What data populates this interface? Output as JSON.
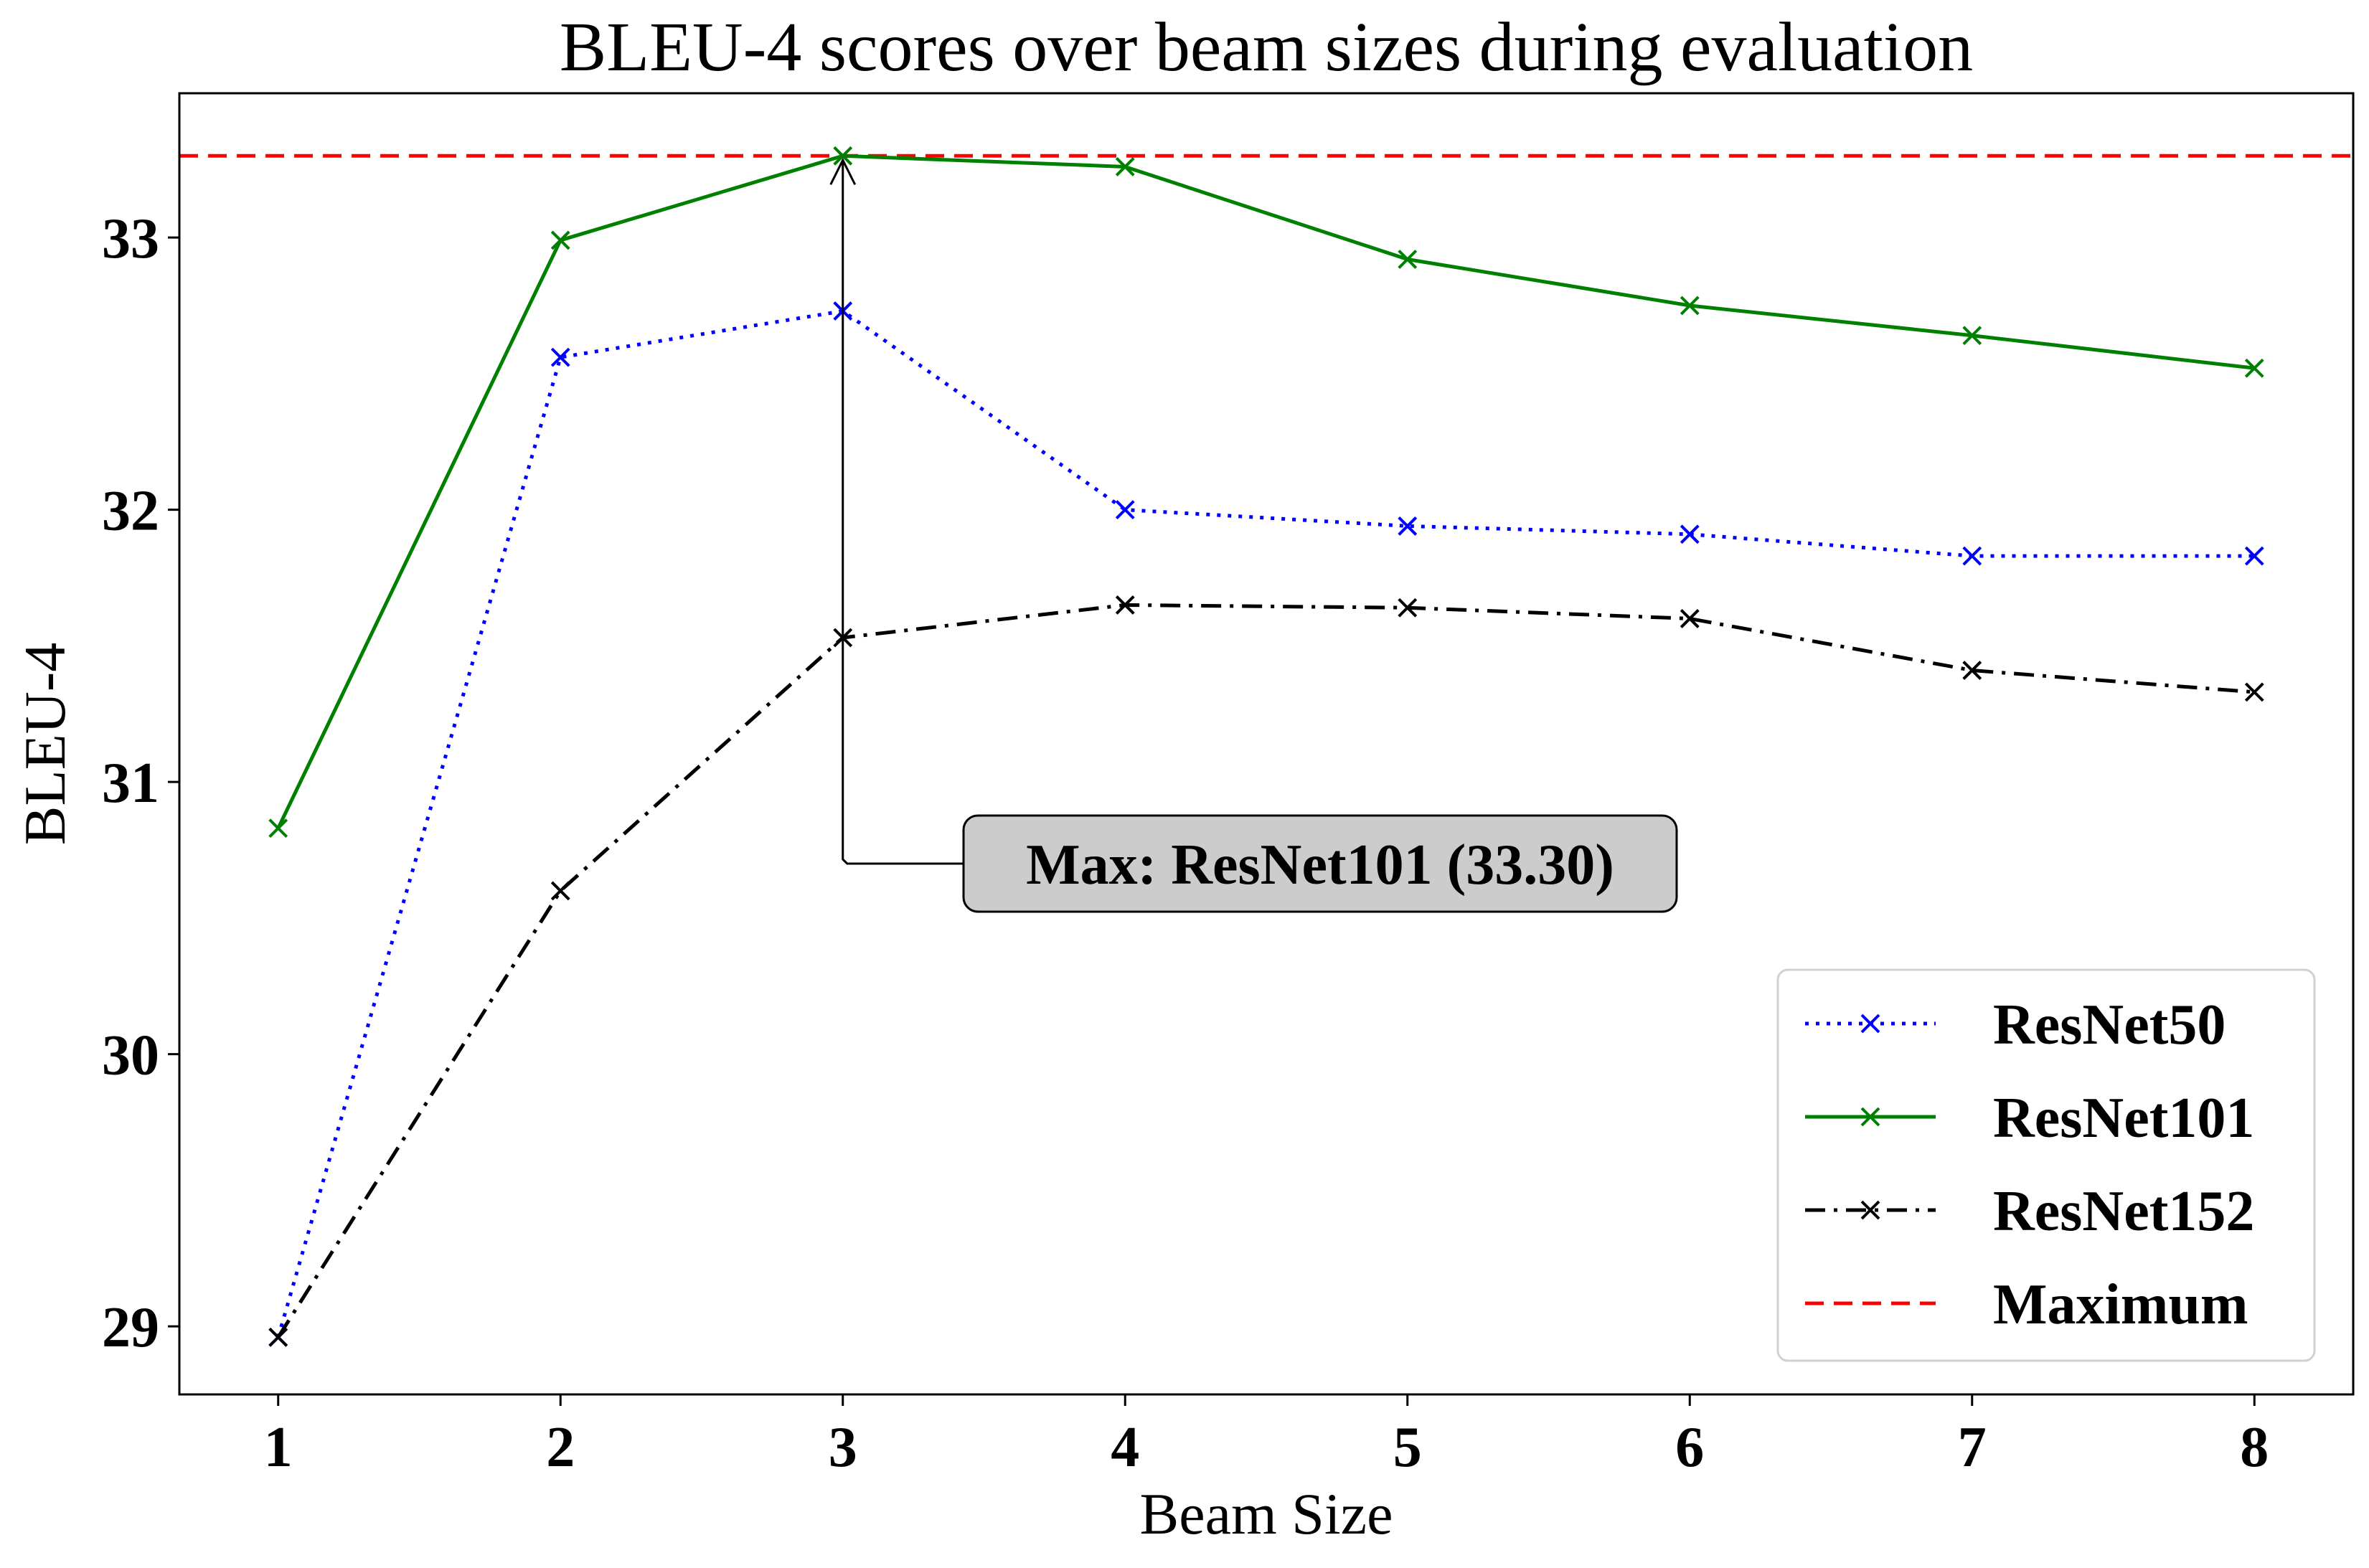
{
  "chart_data": {
    "type": "line",
    "title": "BLEU-4 scores over beam sizes during evaluation",
    "xlabel": "Beam Size",
    "ylabel": "BLEU-4",
    "x": [
      1,
      2,
      3,
      4,
      5,
      6,
      7,
      8
    ],
    "xlim": [
      0.65,
      8.35
    ],
    "ylim": [
      28.75,
      33.53
    ],
    "xticks": [
      1,
      2,
      3,
      4,
      5,
      6,
      7,
      8
    ],
    "yticks": [
      29,
      30,
      31,
      32,
      33
    ],
    "grid": false,
    "legend_position": "lower-right",
    "series": [
      {
        "name": "ResNet50",
        "values": [
          28.96,
          32.56,
          32.73,
          32.0,
          31.94,
          31.91,
          31.83,
          31.83
        ],
        "color": "#0000ff",
        "line_style": "dotted",
        "marker": "x"
      },
      {
        "name": "ResNet101",
        "values": [
          30.83,
          32.99,
          33.3,
          33.26,
          32.92,
          32.75,
          32.64,
          32.52
        ],
        "color": "#008000",
        "line_style": "solid",
        "marker": "x"
      },
      {
        "name": "ResNet152",
        "values": [
          28.96,
          30.6,
          31.53,
          31.65,
          31.64,
          31.6,
          31.41,
          31.33
        ],
        "color": "#000000",
        "line_style": "dashdot",
        "marker": "x"
      }
    ],
    "reference_line": {
      "name": "Maximum",
      "value": 33.3,
      "color": "#ff0000",
      "line_style": "dashed"
    },
    "annotation": {
      "text": "Max: ResNet101 (33.30)",
      "target_x": 3,
      "target_y": 33.3,
      "elbow_y": 30.7,
      "box_color": "#cccccc"
    }
  }
}
